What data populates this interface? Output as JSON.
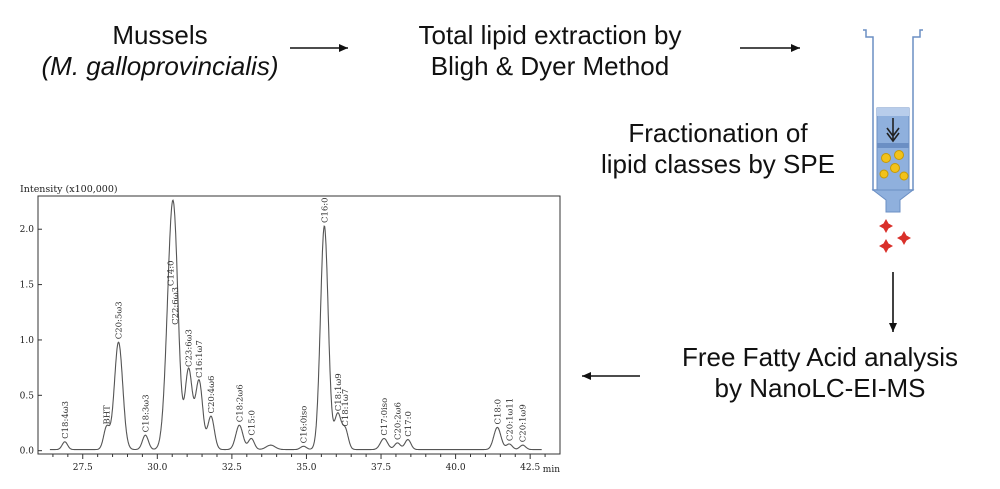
{
  "flow": {
    "mussels": {
      "line1": "Mussels",
      "line2": "(M. galloprovincialis)"
    },
    "extraction": {
      "line1": "Total lipid extraction by",
      "line2": "Bligh & Dyer Method"
    },
    "fractionation": {
      "line1": "Fractionation of",
      "line2": "lipid classes by SPE"
    },
    "analysis": {
      "line1": "Free Fatty Acid analysis",
      "line2": "by NanoLC-EI-MS"
    }
  },
  "colors": {
    "accent": "#d9302a",
    "cartridge": "#8fb0dd",
    "trace": "#555555"
  },
  "chart_data": {
    "type": "line",
    "title": "",
    "ylabel": "Intensity (x100,000)",
    "xlabel": "min",
    "xlim": [
      26.0,
      43.5
    ],
    "ylim": [
      -0.03,
      2.3
    ],
    "x_ticks": [
      27.5,
      30.0,
      32.5,
      35.0,
      37.5,
      40.0,
      42.5
    ],
    "x_tick_labels": [
      "27.5",
      "30.0",
      "32.5",
      "35.0",
      "37.5",
      "40.0",
      "42.5"
    ],
    "y_ticks": [
      0.0,
      0.5,
      1.0,
      1.5,
      2.0
    ],
    "y_tick_labels": [
      "0.0",
      "0.5",
      "1.0",
      "1.5",
      "2.0"
    ],
    "peaks": [
      {
        "rt": 26.9,
        "height": 0.07,
        "width": 0.09,
        "label": "C18:4ω3"
      },
      {
        "rt": 28.3,
        "height": 0.2,
        "width": 0.1,
        "label": "BHT"
      },
      {
        "rt": 28.7,
        "height": 0.97,
        "width": 0.14,
        "label": "C20:5ω3"
      },
      {
        "rt": 29.6,
        "height": 0.13,
        "width": 0.1,
        "label": "C18:3ω3"
      },
      {
        "rt": 30.45,
        "height": 1.45,
        "width": 0.16,
        "label": "C14:0"
      },
      {
        "rt": 30.6,
        "height": 1.1,
        "width": 0.14,
        "label": "C22:6ω3"
      },
      {
        "rt": 31.05,
        "height": 0.72,
        "width": 0.12,
        "label": "C23:6ω3"
      },
      {
        "rt": 31.4,
        "height": 0.62,
        "width": 0.12,
        "label": "C16:1ω7"
      },
      {
        "rt": 31.8,
        "height": 0.3,
        "width": 0.11,
        "label": "C20:4ω6"
      },
      {
        "rt": 32.75,
        "height": 0.22,
        "width": 0.12,
        "label": "C18:2ω6"
      },
      {
        "rt": 33.15,
        "height": 0.1,
        "width": 0.1,
        "label": "C15:0"
      },
      {
        "rt": 33.8,
        "height": 0.04,
        "width": 0.15,
        "label": ""
      },
      {
        "rt": 34.9,
        "height": 0.03,
        "width": 0.1,
        "label": "C16:0iso"
      },
      {
        "rt": 35.6,
        "height": 2.02,
        "width": 0.13,
        "label": "C16:0"
      },
      {
        "rt": 36.05,
        "height": 0.32,
        "width": 0.11,
        "label": "C18:1ω9"
      },
      {
        "rt": 36.3,
        "height": 0.18,
        "width": 0.1,
        "label": "C18:1ω7"
      },
      {
        "rt": 37.6,
        "height": 0.1,
        "width": 0.12,
        "label": "C17:0iso"
      },
      {
        "rt": 38.05,
        "height": 0.06,
        "width": 0.1,
        "label": "C20:2ω6"
      },
      {
        "rt": 38.4,
        "height": 0.09,
        "width": 0.1,
        "label": "C17:0"
      },
      {
        "rt": 41.4,
        "height": 0.2,
        "width": 0.12,
        "label": "C18:0"
      },
      {
        "rt": 41.8,
        "height": 0.05,
        "width": 0.1,
        "label": "C20:1ω11"
      },
      {
        "rt": 42.25,
        "height": 0.04,
        "width": 0.1,
        "label": "C20:1ω9"
      }
    ]
  }
}
